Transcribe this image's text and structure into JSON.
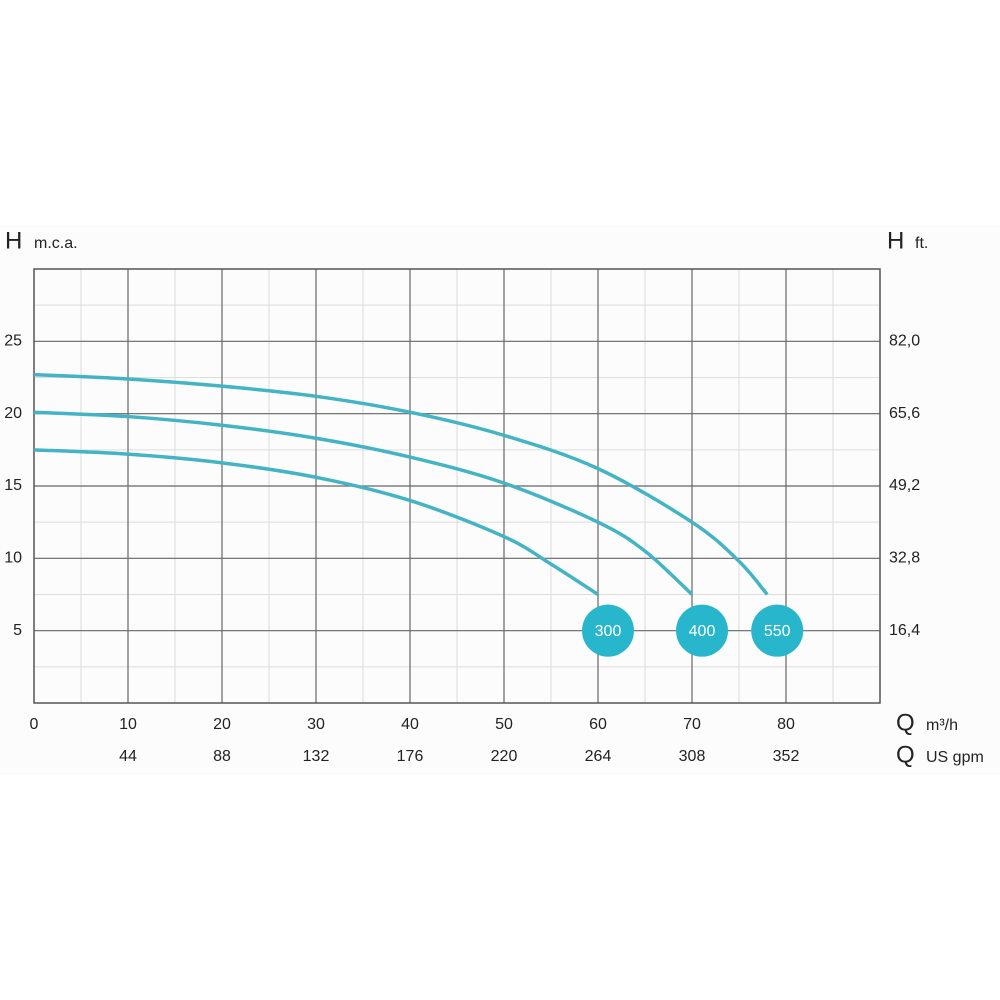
{
  "chart_data": {
    "type": "line",
    "y_label_symbol": "H",
    "y_label_unit": "m.c.a.",
    "y2_label_symbol": "H",
    "y2_label_unit": "ft.",
    "x_label_symbol": "Q",
    "x_label_unit": "m³/h",
    "x2_label_symbol": "Q",
    "x2_label_unit": "US gpm",
    "xlim": [
      0,
      90
    ],
    "xticks": [
      0,
      10,
      20,
      30,
      40,
      50,
      60,
      70,
      80
    ],
    "x2lim": [
      0,
      396
    ],
    "x2ticks": [
      44,
      88,
      132,
      176,
      220,
      264,
      308,
      352
    ],
    "ylim": [
      0,
      30
    ],
    "yticks": [
      5,
      10,
      15,
      20,
      25
    ],
    "y2lim": [
      0,
      98.4
    ],
    "y2ticks": [
      {
        "value": 16.4,
        "label": "16,4"
      },
      {
        "value": 32.8,
        "label": "32,8"
      },
      {
        "value": 49.2,
        "label": "49,2"
      },
      {
        "value": 65.6,
        "label": "65,6"
      },
      {
        "value": 82,
        "label": "82,0"
      }
    ],
    "grid": true,
    "series": [
      {
        "name": "300",
        "color": "#44b4c4",
        "x": [
          0,
          10,
          20,
          30,
          40,
          50,
          55,
          60
        ],
        "values": [
          17.5,
          17.2,
          16.6,
          15.6,
          14.0,
          11.5,
          9.6,
          7.5
        ]
      },
      {
        "name": "400",
        "color": "#44b4c4",
        "x": [
          0,
          10,
          20,
          30,
          40,
          50,
          60,
          65,
          70
        ],
        "values": [
          20.1,
          19.8,
          19.2,
          18.3,
          17.0,
          15.2,
          12.5,
          10.5,
          7.5
        ]
      },
      {
        "name": "550",
        "color": "#44b4c4",
        "x": [
          0,
          10,
          20,
          30,
          40,
          50,
          60,
          70,
          75,
          78
        ],
        "values": [
          22.7,
          22.4,
          21.9,
          21.2,
          20.1,
          18.5,
          16.2,
          12.5,
          9.8,
          7.5
        ]
      }
    ]
  }
}
